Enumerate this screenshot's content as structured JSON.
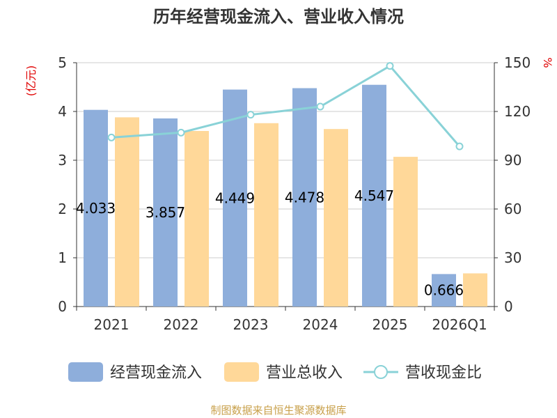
{
  "colors": {
    "series1": "#8eaedb",
    "series2": "#ffd899",
    "series3": "#89d2d7",
    "unit": "#e00000",
    "source": "#c8a04a"
  },
  "chart_data": {
    "type": "bar",
    "title": "历年经营现金流入、营业收入情况",
    "categories": [
      "2021",
      "2022",
      "2023",
      "2024",
      "2025",
      "2026Q1"
    ],
    "y_left": {
      "unit": "(亿元)",
      "min": 0,
      "max": 5,
      "ticks": [
        "0",
        "1",
        "2",
        "3",
        "4",
        "5"
      ]
    },
    "y_right": {
      "unit": "%",
      "min": 0,
      "max": 150,
      "ticks": [
        "0",
        "30",
        "60",
        "90",
        "120",
        "150"
      ]
    },
    "grid": true,
    "legend_position": "bottom",
    "series": [
      {
        "name": "经营现金流入",
        "type": "bar",
        "axis": "left",
        "values": [
          4.033,
          3.857,
          4.449,
          4.478,
          4.547,
          0.666
        ],
        "labels": [
          "4.033",
          "3.857",
          "4.449",
          "4.478",
          "4.547",
          "0.666"
        ]
      },
      {
        "name": "营业总收入",
        "type": "bar",
        "axis": "left",
        "values": [
          3.88,
          3.6,
          3.76,
          3.64,
          3.07,
          0.68
        ]
      },
      {
        "name": "营收现金比",
        "type": "line",
        "axis": "right",
        "values": [
          104,
          107,
          118,
          123,
          148,
          98.5
        ]
      }
    ],
    "source": "制图数据来自恒生聚源数据库"
  }
}
